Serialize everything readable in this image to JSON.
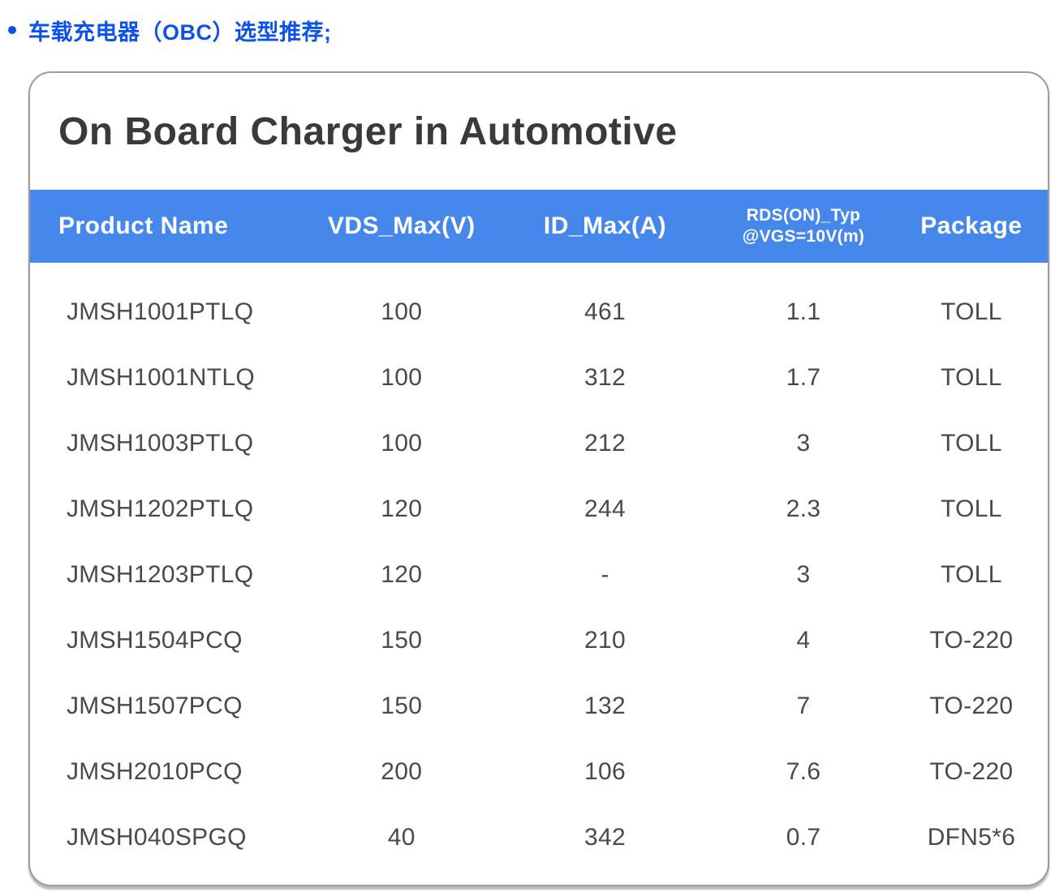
{
  "heading": {
    "text": "车载充电器（OBC）选型推荐;"
  },
  "table": {
    "title": "On Board Charger in Automotive",
    "columns": [
      {
        "label": "Product Name"
      },
      {
        "label": "VDS_Max(V)"
      },
      {
        "label": "ID_Max(A)"
      },
      {
        "label": "RDS(ON)_Typ",
        "line2": "@VGS=10V(m)"
      },
      {
        "label": "Package"
      }
    ],
    "rows": [
      {
        "product": "JMSH1001PTLQ",
        "vds_max": "100",
        "id_max": "461",
        "rds_typ": "1.1",
        "package": "TOLL"
      },
      {
        "product": "JMSH1001NTLQ",
        "vds_max": "100",
        "id_max": "312",
        "rds_typ": "1.7",
        "package": "TOLL"
      },
      {
        "product": "JMSH1003PTLQ",
        "vds_max": "100",
        "id_max": "212",
        "rds_typ": "3",
        "package": "TOLL"
      },
      {
        "product": "JMSH1202PTLQ",
        "vds_max": "120",
        "id_max": "244",
        "rds_typ": "2.3",
        "package": "TOLL"
      },
      {
        "product": "JMSH1203PTLQ",
        "vds_max": "120",
        "id_max": "-",
        "rds_typ": "3",
        "package": "TOLL"
      },
      {
        "product": "JMSH1504PCQ",
        "vds_max": "150",
        "id_max": "210",
        "rds_typ": "4",
        "package": "TO-220"
      },
      {
        "product": "JMSH1507PCQ",
        "vds_max": "150",
        "id_max": "132",
        "rds_typ": "7",
        "package": "TO-220"
      },
      {
        "product": "JMSH2010PCQ",
        "vds_max": "200",
        "id_max": "106",
        "rds_typ": "7.6",
        "package": "TO-220"
      },
      {
        "product": "JMSH040SPGQ",
        "vds_max": "40",
        "id_max": "342",
        "rds_typ": "0.7",
        "package": "DFN5*6"
      }
    ]
  },
  "colors": {
    "heading_blue": "#0b52ec",
    "header_bg": "#4687ec",
    "header_text": "#ffffff",
    "title_text": "#3a3a3a",
    "body_text": "#4a4a4a",
    "card_border": "#9c9c9c"
  }
}
